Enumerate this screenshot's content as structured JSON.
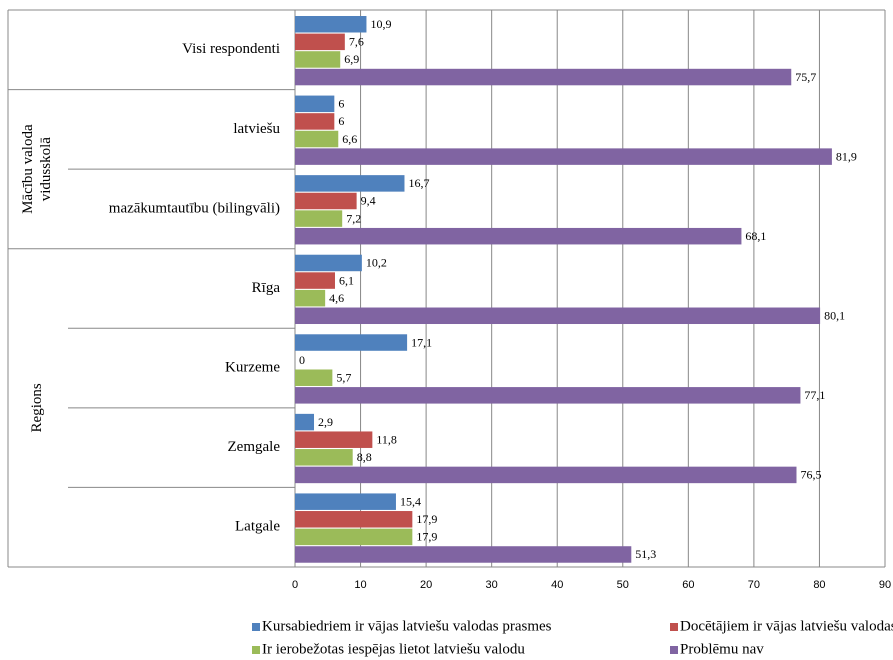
{
  "chart_data": {
    "type": "bar",
    "orientation": "horizontal",
    "categories": [
      "Visi respondenti",
      "latviešu",
      "mazākumtautību (bilingvāli)",
      "Rīga",
      "Kurzeme",
      "Zemgale",
      "Latgale"
    ],
    "category_groups": [
      [
        "Mācību valoda",
        "vidusskolā"
      ],
      [
        "Regions"
      ]
    ],
    "series": [
      {
        "name": "Kursabiedriem ir vājas latviešu valodas prasmes",
        "color": "#4f81bd",
        "values": [
          10.9,
          6,
          16.7,
          10.2,
          17.1,
          2.9,
          15.4
        ],
        "value_labels": [
          "10,9",
          "6",
          "16,7",
          "10,2",
          "17,1",
          "2,9",
          "15,4"
        ]
      },
      {
        "name": "Docētājiem ir vājas latviešu valodas prasmes",
        "color": "#c0504d",
        "values": [
          7.6,
          6,
          9.4,
          6.1,
          0,
          11.8,
          17.9
        ],
        "value_labels": [
          "7,6",
          "6",
          "9,4",
          "6,1",
          "0",
          "11,8",
          "17,9"
        ]
      },
      {
        "name": "Ir ierobežotas iespējas lietot latviešu valodu",
        "color": "#9bbb59",
        "values": [
          6.9,
          6.6,
          7.2,
          4.6,
          5.7,
          8.8,
          17.9
        ],
        "value_labels": [
          "6,9",
          "6,6",
          "7,2",
          "4,6",
          "5,7",
          "8,8",
          "17,9"
        ]
      },
      {
        "name": "Problēmu nav",
        "color": "#8064a2",
        "values": [
          75.7,
          81.9,
          68.1,
          80.1,
          77.1,
          76.5,
          51.3
        ],
        "value_labels": [
          "75,7",
          "81,9",
          "68,1",
          "80,1",
          "77,1",
          "76,5",
          "51,3"
        ]
      }
    ],
    "xlim": [
      0,
      90
    ],
    "xticks": [
      0,
      10,
      20,
      30,
      40,
      50,
      60,
      70,
      80,
      90
    ],
    "grid": true,
    "legend": "bottom"
  }
}
